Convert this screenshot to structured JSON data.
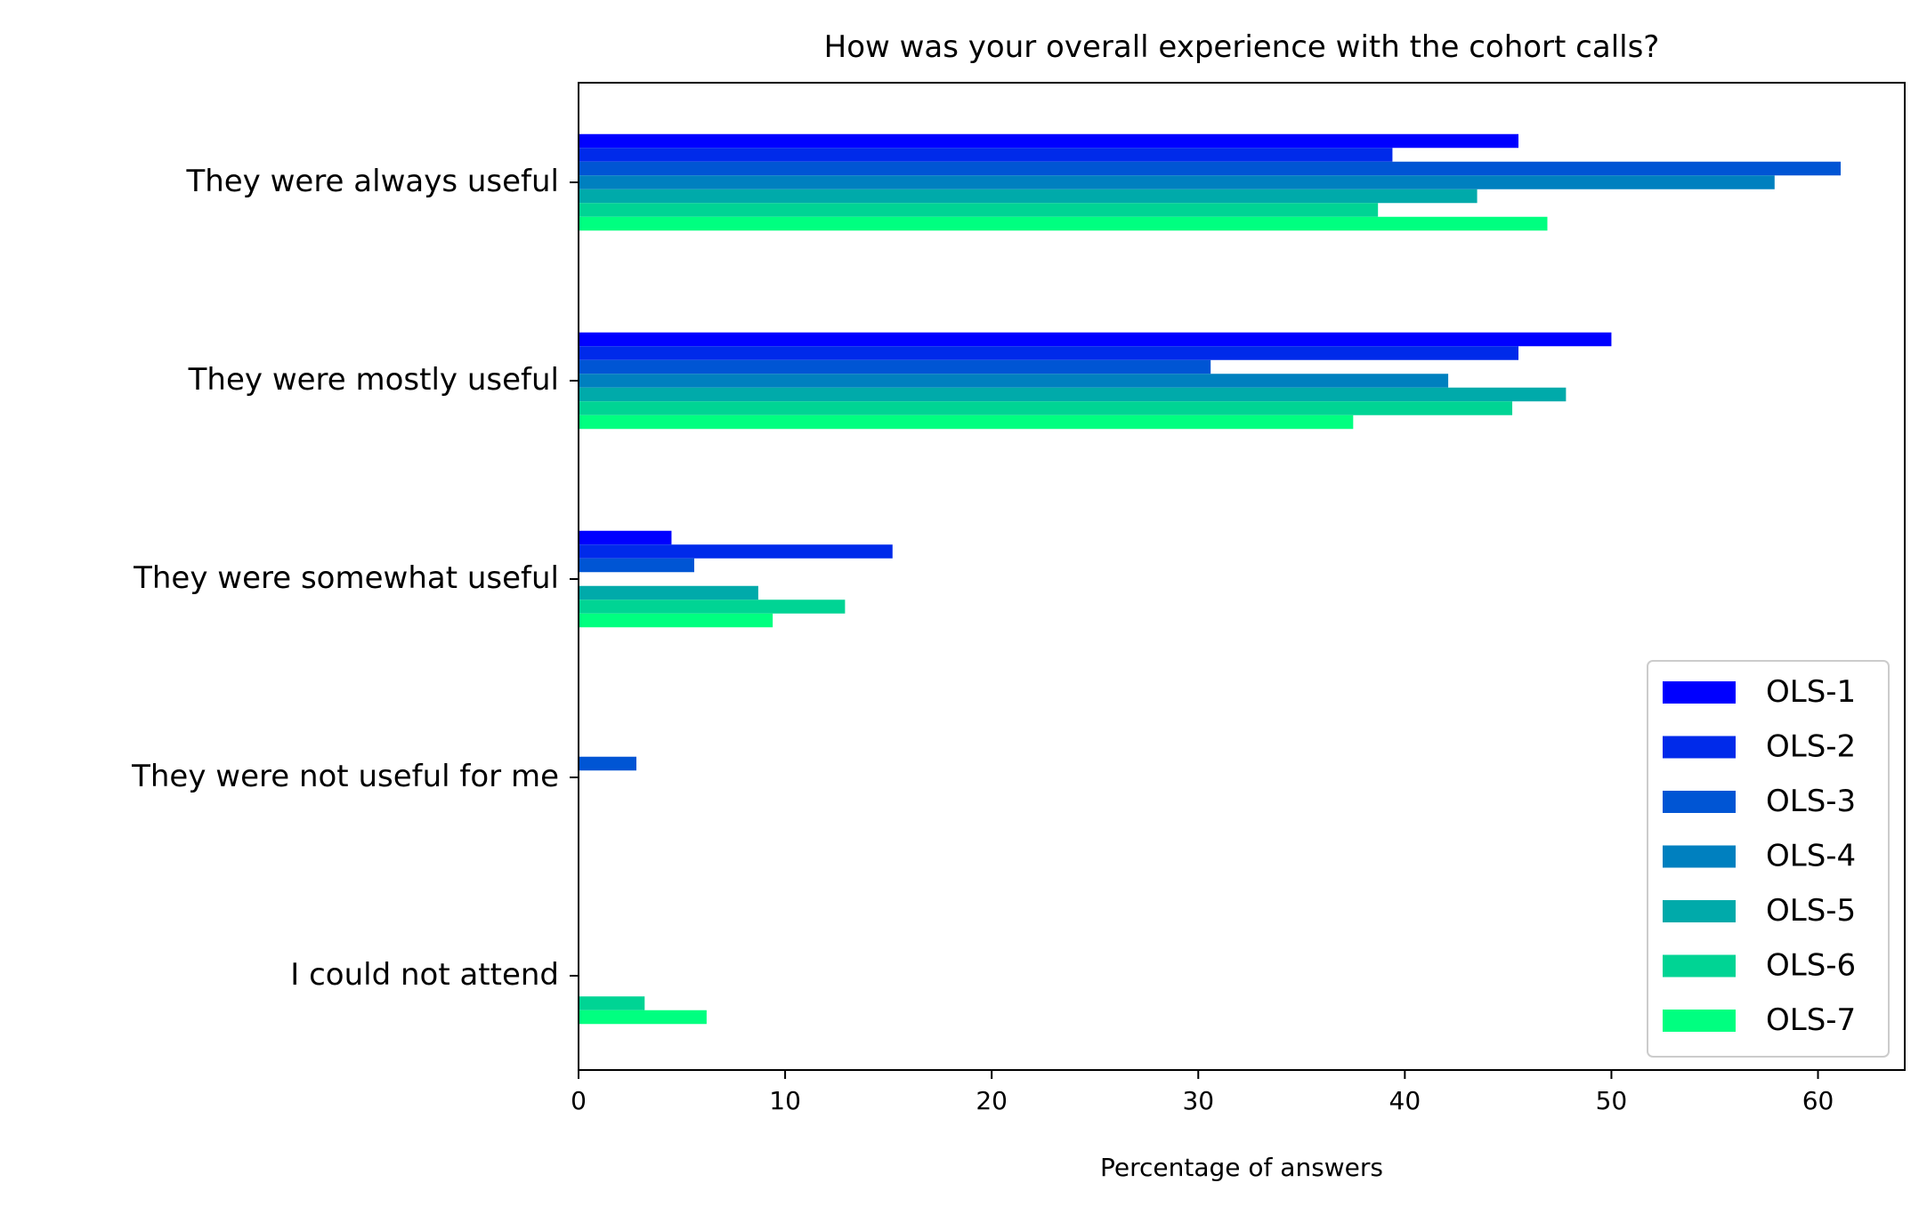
{
  "chart_data": {
    "type": "bar",
    "orientation": "horizontal",
    "title": "How was your overall experience with the cohort calls?",
    "xlabel": "Percentage of answers",
    "ylabel": "",
    "xlim": [
      0,
      64.2
    ],
    "xticks": [
      0,
      10,
      20,
      30,
      40,
      50,
      60
    ],
    "grid": false,
    "legend_position": "lower-right",
    "categories": [
      "They were always useful",
      "They were mostly useful",
      "They were somewhat useful",
      "They were not useful for me",
      "I could not attend"
    ],
    "series": [
      {
        "name": "OLS-1",
        "color": "#0000ff",
        "values": [
          45.5,
          50.0,
          4.5,
          0,
          0
        ]
      },
      {
        "name": "OLS-2",
        "color": "#002aea",
        "values": [
          39.4,
          45.5,
          15.2,
          0,
          0
        ]
      },
      {
        "name": "OLS-3",
        "color": "#0055d4",
        "values": [
          61.1,
          30.6,
          5.6,
          2.8,
          0
        ]
      },
      {
        "name": "OLS-4",
        "color": "#0080bf",
        "values": [
          57.9,
          42.1,
          0,
          0,
          0
        ]
      },
      {
        "name": "OLS-5",
        "color": "#00aaaa",
        "values": [
          43.5,
          47.8,
          8.7,
          0,
          0
        ]
      },
      {
        "name": "OLS-6",
        "color": "#00d494",
        "values": [
          38.7,
          45.2,
          12.9,
          0,
          3.2
        ]
      },
      {
        "name": "OLS-7",
        "color": "#00ff80",
        "values": [
          46.9,
          37.5,
          9.4,
          0,
          6.2
        ]
      }
    ]
  }
}
